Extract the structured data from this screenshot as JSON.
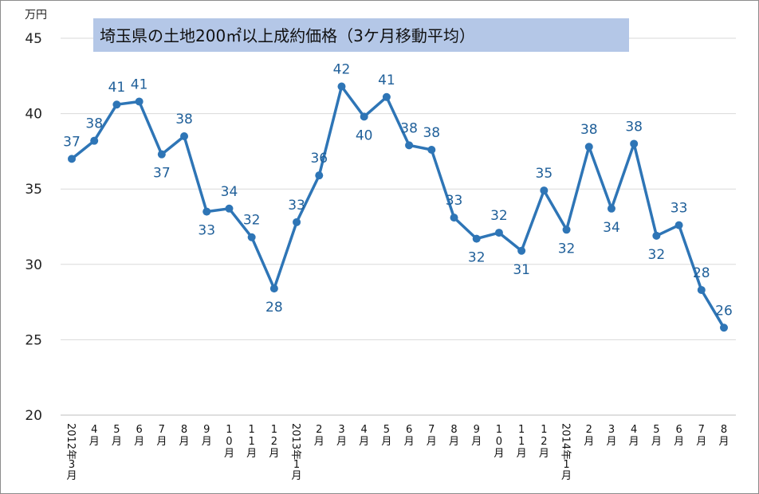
{
  "chart_data": {
    "type": "line",
    "title": "埼玉県の土地200㎡以上成約価格（3ケ月移動平均）",
    "ylabel": "万円",
    "xlabel": "",
    "ylim": [
      20,
      45
    ],
    "yticks": [
      "20",
      "25",
      "30",
      "35",
      "40",
      "45"
    ],
    "grid": true,
    "legend": "none",
    "colors": {
      "line": "#2e75b6",
      "title_bg": "#b4c7e7",
      "grid": "#d9d9d9",
      "label": "#1f5f99"
    },
    "categories": [
      "2012年3月",
      "4月",
      "5月",
      "6月",
      "7月",
      "8月",
      "9月",
      "10月",
      "11月",
      "12月",
      "2013年1月",
      "2月",
      "3月",
      "4月",
      "5月",
      "6月",
      "7月",
      "8月",
      "9月",
      "10月",
      "11月",
      "12月",
      "2014年1月",
      "2月",
      "3月",
      "4月",
      "5月",
      "6月",
      "7月",
      "8月"
    ],
    "values": [
      37.0,
      38.2,
      40.6,
      40.8,
      37.3,
      38.5,
      33.5,
      33.7,
      31.8,
      28.4,
      32.8,
      35.9,
      41.8,
      39.8,
      41.1,
      37.9,
      37.6,
      33.1,
      31.7,
      32.1,
      30.9,
      34.9,
      32.3,
      37.8,
      33.7,
      38.0,
      31.9,
      32.6,
      28.3,
      25.8
    ],
    "data_labels": [
      "37",
      "38",
      "41",
      "41",
      "37",
      "38",
      "33",
      "34",
      "32",
      "28",
      "33",
      "36",
      "42",
      "40",
      "41",
      "38",
      "38",
      "33",
      "32",
      "32",
      "31",
      "35",
      "32",
      "38",
      "34",
      "38",
      "32",
      "33",
      "28",
      "26"
    ]
  }
}
